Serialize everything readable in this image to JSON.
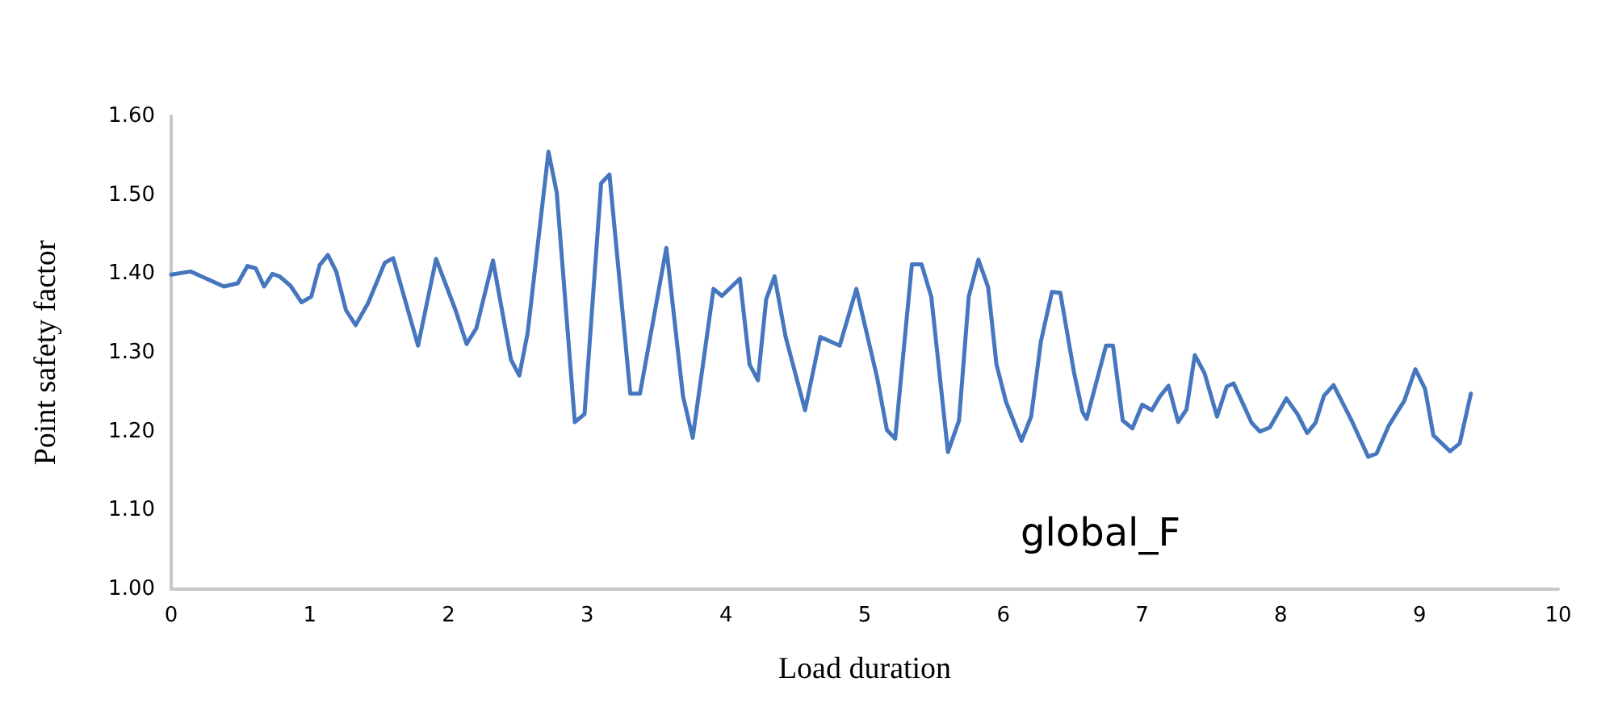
{
  "chart_data": {
    "type": "line",
    "xlabel": "Load duration",
    "ylabel": "Point safety factor",
    "annotations": [
      "global_F"
    ],
    "xlim": [
      0,
      10
    ],
    "xticks": [
      0,
      1,
      2,
      3,
      4,
      5,
      6,
      7,
      8,
      9,
      10
    ],
    "ylim": [
      1.0,
      1.6
    ],
    "yticks": [
      {
        "value": 1.0,
        "label": "1.00"
      },
      {
        "value": 1.1,
        "label": "1.10"
      },
      {
        "value": 1.2,
        "label": "1.20"
      },
      {
        "value": 1.3,
        "label": "1.30"
      },
      {
        "value": 1.4,
        "label": "1.40"
      },
      {
        "value": 1.5,
        "label": "1.50"
      },
      {
        "value": 1.6,
        "label": "1.60"
      }
    ],
    "grid": false,
    "marker": "none",
    "line_style": "solid",
    "series": [
      {
        "color": "#4677be",
        "x": [
          0,
          0.14,
          0.38,
          0.48,
          0.55,
          0.61,
          0.67,
          0.73,
          0.78,
          0.86,
          0.94,
          1.01,
          1.07,
          1.13,
          1.19,
          1.26,
          1.33,
          1.42,
          1.54,
          1.6,
          1.78,
          1.91,
          2.05,
          2.13,
          2.2,
          2.32,
          2.45,
          2.51,
          2.57,
          2.72,
          2.78,
          2.91,
          2.98,
          3.1,
          3.16,
          3.31,
          3.38,
          3.57,
          3.69,
          3.76,
          3.91,
          3.97,
          4.1,
          4.17,
          4.23,
          4.29,
          4.35,
          4.43,
          4.57,
          4.68,
          4.82,
          4.94,
          5.09,
          5.16,
          5.22,
          5.34,
          5.41,
          5.48,
          5.6,
          5.68,
          5.75,
          5.82,
          5.89,
          5.95,
          6.02,
          6.13,
          6.2,
          6.27,
          6.35,
          6.41,
          6.51,
          6.57,
          6.6,
          6.74,
          6.79,
          6.86,
          6.93,
          7.0,
          7.07,
          7.13,
          7.19,
          7.26,
          7.32,
          7.38,
          7.45,
          7.54,
          7.61,
          7.66,
          7.79,
          7.85,
          7.92,
          8.04,
          8.12,
          8.19,
          8.25,
          8.31,
          8.38,
          8.51,
          8.63,
          8.69,
          8.78,
          8.89,
          8.97,
          9.04,
          9.1,
          9.22,
          9.29,
          9.37
        ],
        "values": [
          1.399,
          1.403,
          1.384,
          1.388,
          1.41,
          1.407,
          1.384,
          1.4,
          1.397,
          1.385,
          1.364,
          1.371,
          1.411,
          1.424,
          1.403,
          1.354,
          1.335,
          1.363,
          1.414,
          1.42,
          1.309,
          1.419,
          1.354,
          1.311,
          1.331,
          1.417,
          1.291,
          1.271,
          1.325,
          1.555,
          1.503,
          1.212,
          1.222,
          1.515,
          1.526,
          1.248,
          1.248,
          1.433,
          1.245,
          1.192,
          1.381,
          1.372,
          1.394,
          1.285,
          1.265,
          1.368,
          1.397,
          1.32,
          1.227,
          1.32,
          1.309,
          1.381,
          1.268,
          1.202,
          1.191,
          1.412,
          1.412,
          1.371,
          1.174,
          1.214,
          1.371,
          1.418,
          1.383,
          1.285,
          1.237,
          1.188,
          1.219,
          1.314,
          1.377,
          1.376,
          1.274,
          1.225,
          1.216,
          1.309,
          1.309,
          1.214,
          1.204,
          1.234,
          1.227,
          1.245,
          1.258,
          1.212,
          1.228,
          1.297,
          1.274,
          1.219,
          1.257,
          1.261,
          1.211,
          1.2,
          1.205,
          1.242,
          1.222,
          1.198,
          1.211,
          1.245,
          1.259,
          1.214,
          1.168,
          1.172,
          1.208,
          1.239,
          1.279,
          1.254,
          1.195,
          1.175,
          1.185,
          1.248
        ]
      }
    ]
  }
}
